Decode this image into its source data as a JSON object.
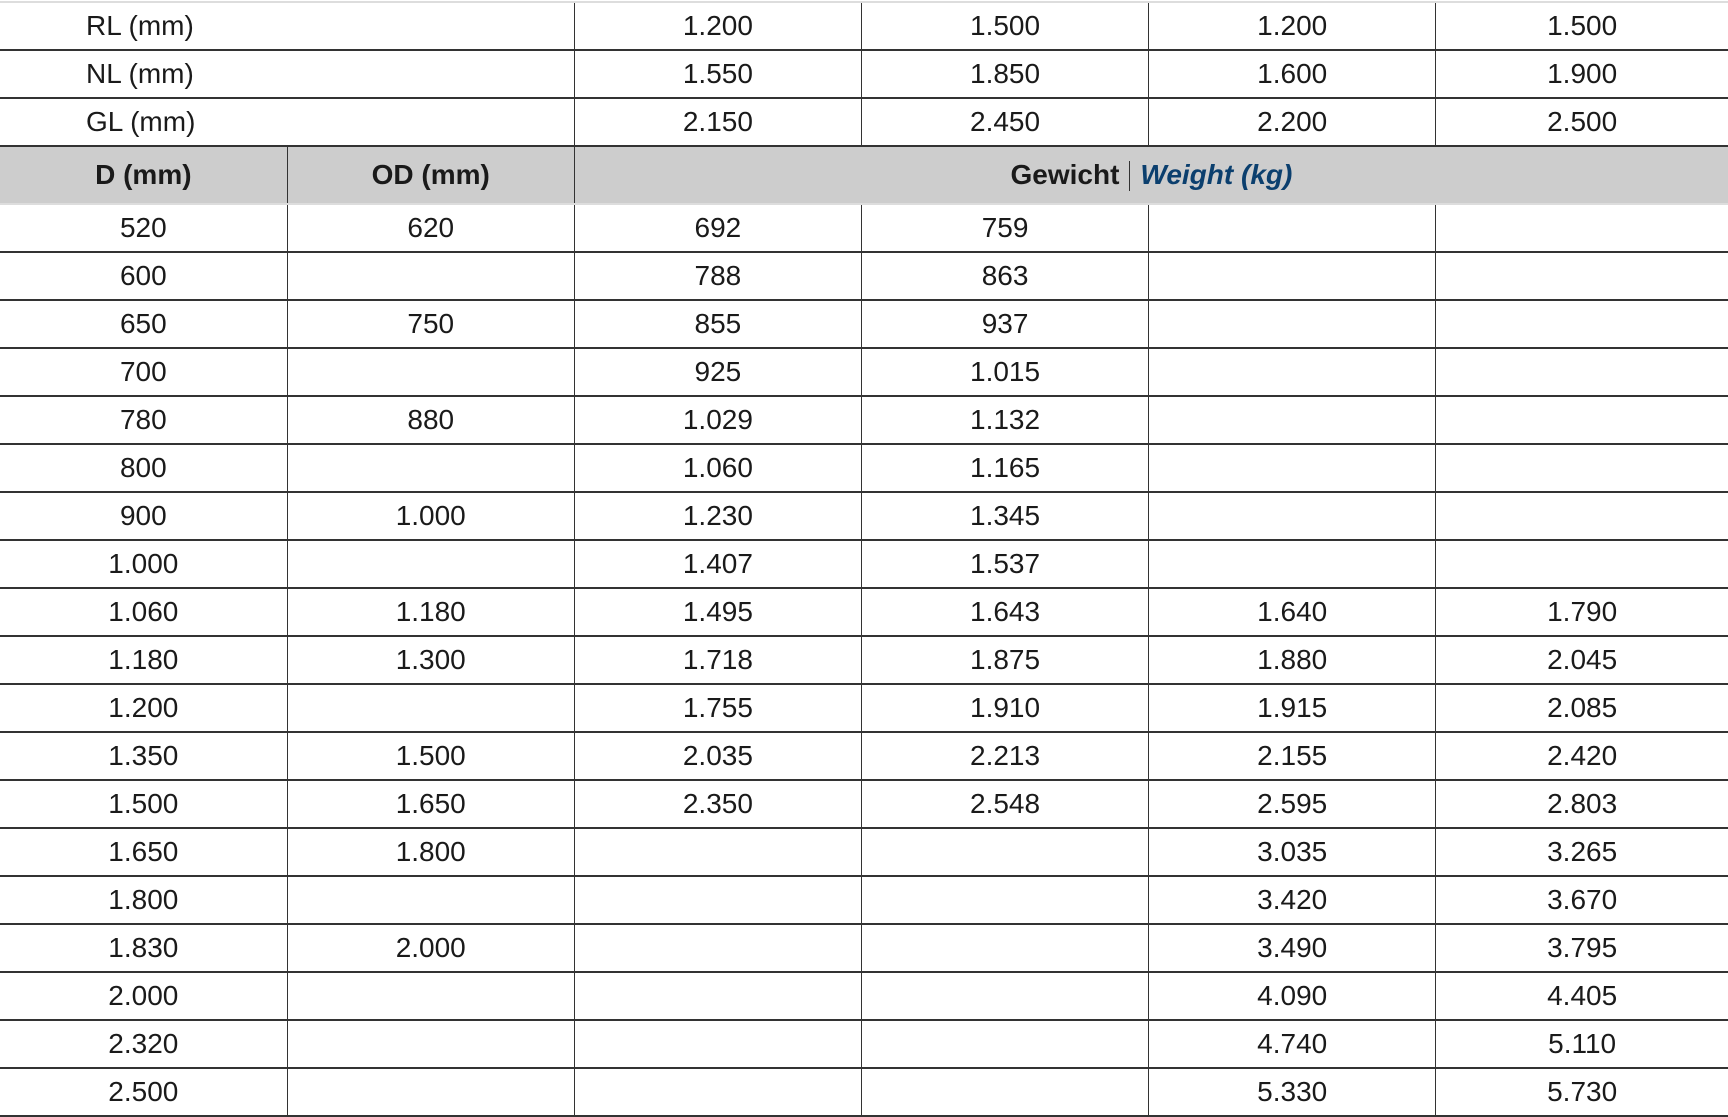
{
  "top_rows": [
    {
      "label": "RL (mm)",
      "values": [
        "1.200",
        "1.500",
        "1.200",
        "1.500"
      ]
    },
    {
      "label": "NL (mm)",
      "values": [
        "1.550",
        "1.850",
        "1.600",
        "1.900"
      ]
    },
    {
      "label": "GL (mm)",
      "values": [
        "2.150",
        "2.450",
        "2.200",
        "2.500"
      ]
    }
  ],
  "header": {
    "d": "D (mm)",
    "od": "OD (mm)",
    "weight_de": "Gewicht",
    "weight_en": "Weight (kg)"
  },
  "colors": {
    "header_bg": "#cdcdcd",
    "weight_en": "#0b3f6e"
  },
  "rows": [
    [
      "520",
      "620",
      "692",
      "759",
      "",
      ""
    ],
    [
      "600",
      "",
      "788",
      "863",
      "",
      ""
    ],
    [
      "650",
      "750",
      "855",
      "937",
      "",
      ""
    ],
    [
      "700",
      "",
      "925",
      "1.015",
      "",
      ""
    ],
    [
      "780",
      "880",
      "1.029",
      "1.132",
      "",
      ""
    ],
    [
      "800",
      "",
      "1.060",
      "1.165",
      "",
      ""
    ],
    [
      "900",
      "1.000",
      "1.230",
      "1.345",
      "",
      ""
    ],
    [
      "1.000",
      "",
      "1.407",
      "1.537",
      "",
      ""
    ],
    [
      "1.060",
      "1.180",
      "1.495",
      "1.643",
      "1.640",
      "1.790"
    ],
    [
      "1.180",
      "1.300",
      "1.718",
      "1.875",
      "1.880",
      "2.045"
    ],
    [
      "1.200",
      "",
      "1.755",
      "1.910",
      "1.915",
      "2.085"
    ],
    [
      "1.350",
      "1.500",
      "2.035",
      "2.213",
      "2.155",
      "2.420"
    ],
    [
      "1.500",
      "1.650",
      "2.350",
      "2.548",
      "2.595",
      "2.803"
    ],
    [
      "1.650",
      "1.800",
      "",
      "",
      "3.035",
      "3.265"
    ],
    [
      "1.800",
      "",
      "",
      "",
      "3.420",
      "3.670"
    ],
    [
      "1.830",
      "2.000",
      "",
      "",
      "3.490",
      "3.795"
    ],
    [
      "2.000",
      "",
      "",
      "",
      "4.090",
      "4.405"
    ],
    [
      "2.320",
      "",
      "",
      "",
      "4.740",
      "5.110"
    ],
    [
      "2.500",
      "",
      "",
      "",
      "5.330",
      "5.730"
    ]
  ]
}
